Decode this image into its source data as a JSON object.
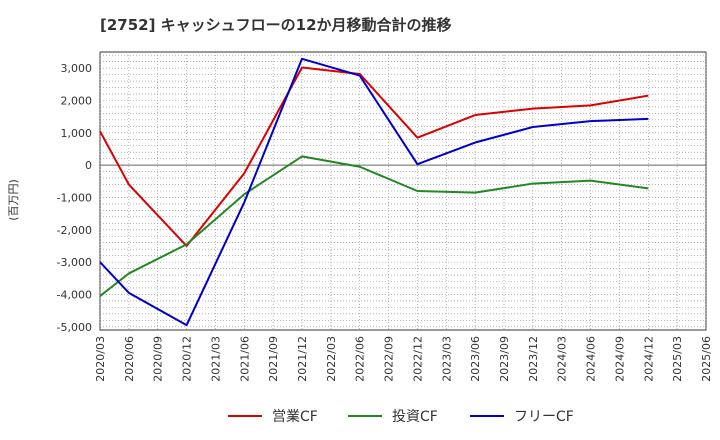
{
  "chart_data": {
    "type": "line",
    "title": "[2752]  キャッシュフローの12か月移動合計の推移",
    "ylabel": "(百万円)",
    "xlabel": "",
    "ylim": [
      -5100,
      3500
    ],
    "yticks": [
      3000,
      2000,
      1000,
      0,
      -1000,
      -2000,
      -3000,
      -4000,
      -5000
    ],
    "ytick_labels": [
      "3,000",
      "2,000",
      "1,000",
      "0",
      "-1,000",
      "-2,000",
      "-3,000",
      "-4,000",
      "-5,000"
    ],
    "categories": [
      "2020/03",
      "2020/06",
      "2020/09",
      "2020/12",
      "2021/03",
      "2021/06",
      "2021/09",
      "2021/12",
      "2022/03",
      "2022/06",
      "2022/09",
      "2022/12",
      "2023/03",
      "2023/06",
      "2023/09",
      "2023/12",
      "2024/03",
      "2024/06",
      "2024/09",
      "2024/12",
      "2025/03",
      "2025/06"
    ],
    "series": [
      {
        "name": "営業CF",
        "color": "#dd0000",
        "values": [
          1050,
          -600,
          null,
          -2500,
          null,
          -250,
          null,
          3020,
          null,
          2820,
          null,
          850,
          null,
          1550,
          null,
          1750,
          null,
          1850,
          null,
          2150,
          null,
          null
        ]
      },
      {
        "name": "投資CF",
        "color": "#228822",
        "values": [
          -4050,
          -3350,
          null,
          -2450,
          null,
          -900,
          null,
          270,
          null,
          -50,
          null,
          -800,
          null,
          -850,
          null,
          -570,
          null,
          -480,
          null,
          -720,
          null,
          null
        ]
      },
      {
        "name": "フリーCF",
        "color": "#0000cc",
        "values": [
          -3000,
          -3950,
          null,
          -4950,
          null,
          -1150,
          null,
          3290,
          null,
          2770,
          null,
          30,
          null,
          700,
          null,
          1180,
          null,
          1360,
          null,
          1430,
          null,
          null
        ]
      }
    ],
    "grid": true,
    "legend_position": "bottom-center"
  }
}
